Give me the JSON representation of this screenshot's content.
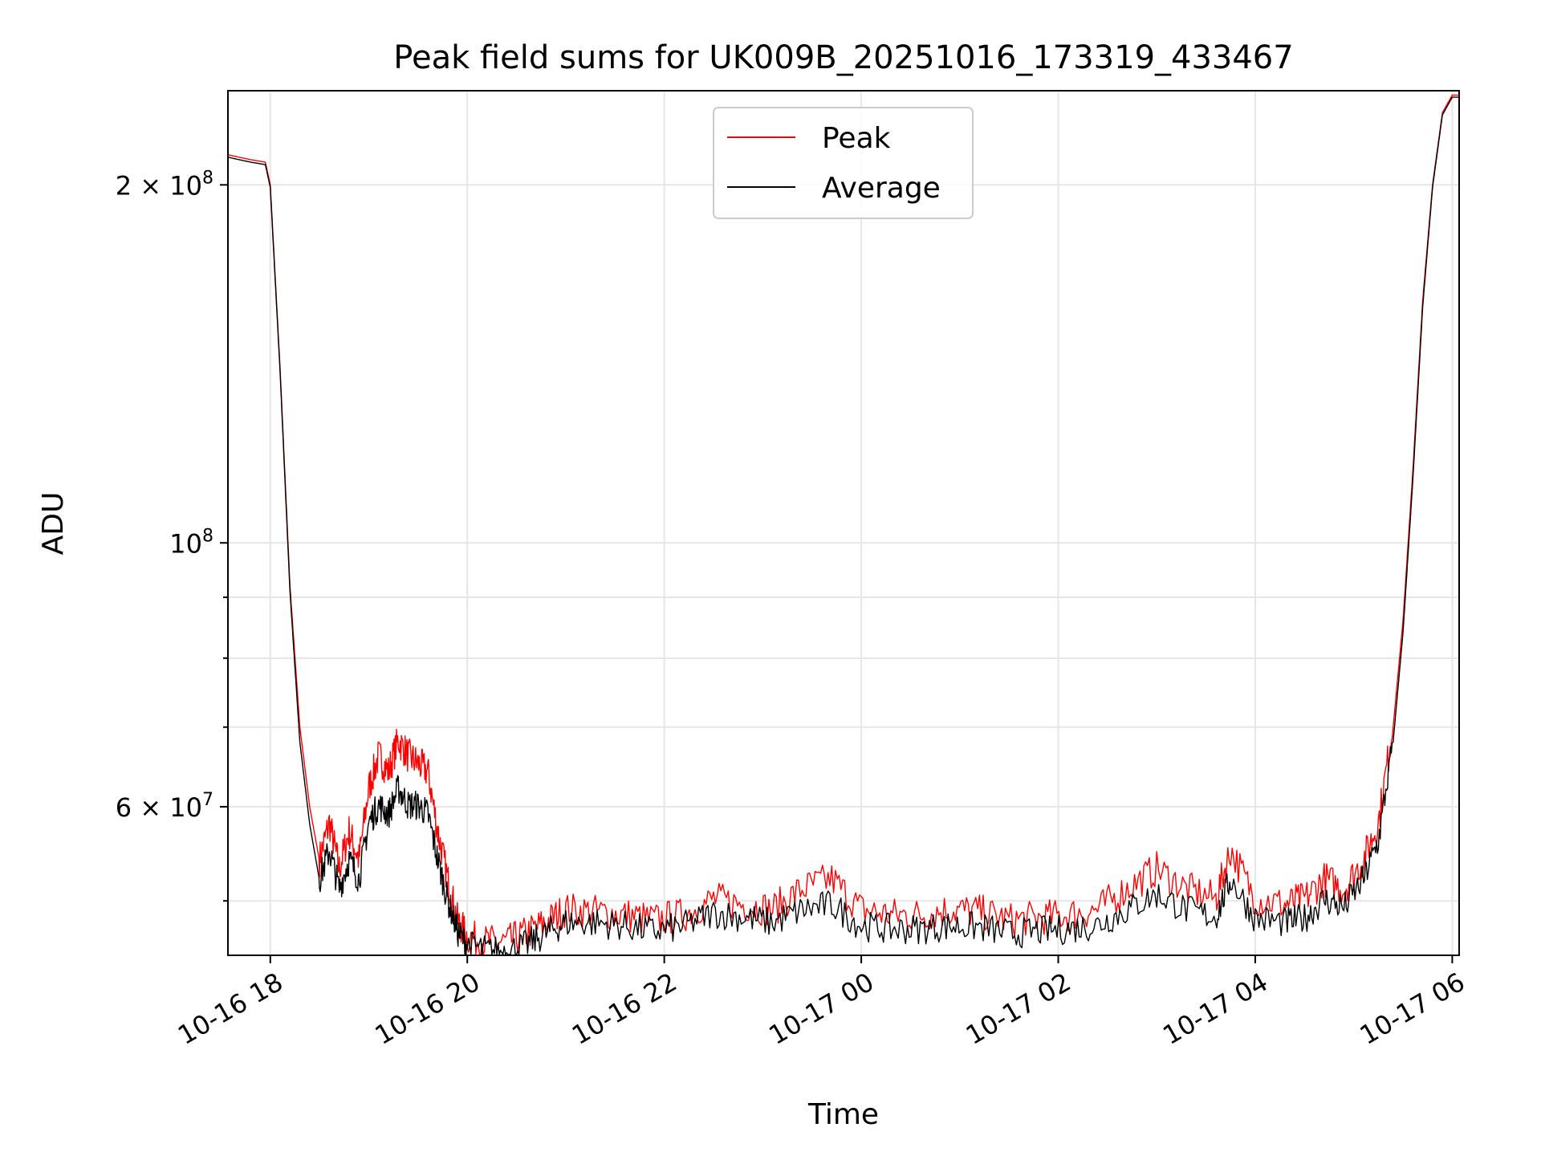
{
  "chart_data": {
    "type": "line",
    "title": "Peak field sums for UK009B_20251016_173319_433467",
    "xlabel": "Time",
    "ylabel": "ADU",
    "yscale": "log",
    "grid": true,
    "legend_position": "upper-center",
    "xlim_hours": [
      17.57,
      30.07
    ],
    "ylim": [
      45000000,
      240000000
    ],
    "x_unit": "hours since 2025-10-16 00:00",
    "x_ticks": [
      {
        "label": "10-16 18",
        "hour": 18
      },
      {
        "label": "10-16 20",
        "hour": 20
      },
      {
        "label": "10-16 22",
        "hour": 22
      },
      {
        "label": "10-17 00",
        "hour": 24
      },
      {
        "label": "10-17 02",
        "hour": 26
      },
      {
        "label": "10-17 04",
        "hour": 28
      },
      {
        "label": "10-17 06",
        "hour": 30
      }
    ],
    "y_major_ticks": [
      {
        "value": 60000000,
        "mantissa": "6",
        "exponent": "7",
        "label": "6 × 10^7"
      },
      {
        "value": 100000000,
        "mantissa": "",
        "exponent": "8",
        "label": "10^8"
      },
      {
        "value": 200000000,
        "mantissa": "2",
        "exponent": "8",
        "label": "2 × 10^8"
      }
    ],
    "y_minor_ticks": [
      50000000,
      70000000,
      80000000,
      90000000
    ],
    "series": [
      {
        "name": "Peak",
        "color": "#ff0000",
        "x": [
          17.57,
          17.8,
          17.95,
          18.0,
          18.1,
          18.2,
          18.3,
          18.4,
          18.5,
          18.6,
          18.7,
          18.8,
          18.9,
          19.0,
          19.1,
          19.2,
          19.3,
          19.4,
          19.5,
          19.6,
          19.7,
          19.8,
          19.9,
          20.0,
          20.2,
          20.4,
          20.6,
          20.8,
          21.0,
          21.3,
          21.6,
          21.9,
          22.2,
          22.5,
          22.8,
          23.1,
          23.4,
          23.7,
          24.0,
          24.3,
          24.6,
          24.9,
          25.2,
          25.5,
          25.8,
          26.1,
          26.4,
          26.7,
          27.0,
          27.3,
          27.6,
          27.75,
          28.0,
          28.3,
          28.5,
          28.7,
          28.9,
          29.1,
          29.25,
          29.4,
          29.5,
          29.6,
          29.7,
          29.8,
          29.9,
          30.0,
          30.07
        ],
        "values": [
          212000000,
          210000000,
          209000000,
          200000000,
          140000000,
          92000000,
          70000000,
          60000000,
          54000000,
          58000000,
          53000000,
          57000000,
          54000000,
          62000000,
          66000000,
          64000000,
          68000000,
          66000000,
          65000000,
          64000000,
          57000000,
          52000000,
          48000000,
          46500000,
          46000000,
          46000000,
          46800000,
          47800000,
          49000000,
          48800000,
          48500000,
          48000000,
          48500000,
          50000000,
          49500000,
          49000000,
          51000000,
          52000000,
          49000000,
          48500000,
          48500000,
          49000000,
          48800000,
          48000000,
          48200000,
          48500000,
          49000000,
          51000000,
          53000000,
          51000000,
          50000000,
          55000000,
          50000000,
          49500000,
          50000000,
          52000000,
          51000000,
          54000000,
          58000000,
          70000000,
          86000000,
          115000000,
          160000000,
          200000000,
          230000000,
          238000000,
          238000000
        ]
      },
      {
        "name": "Average",
        "color": "#000000",
        "x": [
          17.57,
          17.8,
          17.95,
          18.0,
          18.1,
          18.2,
          18.3,
          18.4,
          18.5,
          18.6,
          18.7,
          18.8,
          18.9,
          19.0,
          19.1,
          19.2,
          19.3,
          19.4,
          19.5,
          19.6,
          19.7,
          19.8,
          19.9,
          20.0,
          20.2,
          20.4,
          20.6,
          20.8,
          21.0,
          21.3,
          21.6,
          21.9,
          22.2,
          22.5,
          22.8,
          23.1,
          23.4,
          23.7,
          24.0,
          24.3,
          24.6,
          24.9,
          25.2,
          25.5,
          25.8,
          26.1,
          26.4,
          26.7,
          27.0,
          27.3,
          27.6,
          27.75,
          28.0,
          28.3,
          28.5,
          28.7,
          28.9,
          29.1,
          29.25,
          29.4,
          29.5,
          29.6,
          29.7,
          29.8,
          29.9,
          30.0,
          30.07
        ],
        "values": [
          211000000,
          209000000,
          208000000,
          199000000,
          139000000,
          91000000,
          68000000,
          58000000,
          52000000,
          55000000,
          51000000,
          54000000,
          52000000,
          58000000,
          60000000,
          59000000,
          62000000,
          60000000,
          60000000,
          59000000,
          54000000,
          50000000,
          47000000,
          45800000,
          45300000,
          45200000,
          45800000,
          46800000,
          47800000,
          47800000,
          47500000,
          47000000,
          47500000,
          48700000,
          48300000,
          47800000,
          49000000,
          49500000,
          47500000,
          47200000,
          47200000,
          47500000,
          47400000,
          46800000,
          47000000,
          47200000,
          47600000,
          49000000,
          50500000,
          49000000,
          48300000,
          52000000,
          48200000,
          47800000,
          48200000,
          50000000,
          49200000,
          52000000,
          56000000,
          68000000,
          84000000,
          113000000,
          158000000,
          199000000,
          229000000,
          237000000,
          237000000
        ]
      }
    ]
  }
}
